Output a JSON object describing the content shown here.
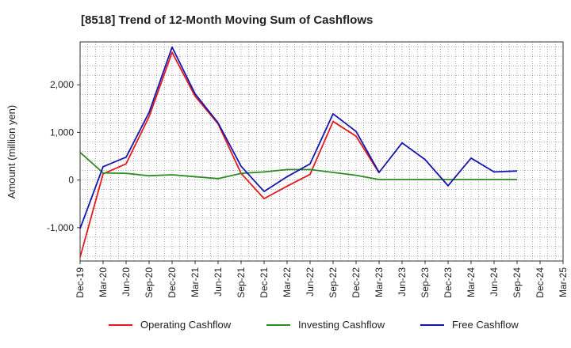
{
  "chart_data": {
    "type": "line",
    "title": "[8518]  Trend of 12-Month Moving Sum of Cashflows",
    "xlabel": "",
    "ylabel": "Amount (million yen)",
    "ylim": [
      -1700,
      2900
    ],
    "yticks": [
      -1000,
      0,
      1000,
      2000
    ],
    "ytick_labels": [
      "-1,000",
      "0",
      "1,000",
      "2,000"
    ],
    "grid": true,
    "legend_position": "bottom",
    "x": [
      "Dec-19",
      "Mar-20",
      "Jun-20",
      "Sep-20",
      "Dec-20",
      "Mar-21",
      "Jun-21",
      "Sep-21",
      "Dec-21",
      "Mar-22",
      "Jun-22",
      "Sep-22",
      "Dec-22",
      "Mar-23",
      "Jun-23",
      "Sep-23",
      "Dec-23",
      "Mar-24",
      "Jun-24",
      "Sep-24",
      "Dec-24",
      "Mar-25"
    ],
    "series": [
      {
        "name": "Operating Cashflow",
        "color": "#e31a1c",
        "values": [
          -1620,
          130,
          340,
          1330,
          2680,
          1760,
          1180,
          140,
          -390,
          -130,
          120,
          1230,
          920,
          150,
          null,
          null,
          null,
          null,
          null,
          null,
          null,
          null
        ]
      },
      {
        "name": "Investing Cashflow",
        "color": "#2e8b22",
        "values": [
          580,
          150,
          140,
          90,
          110,
          70,
          30,
          140,
          170,
          220,
          220,
          160,
          100,
          10,
          10,
          10,
          10,
          10,
          10,
          10,
          null,
          null
        ]
      },
      {
        "name": "Free Cashflow",
        "color": "#1515b0",
        "values": [
          -1020,
          280,
          480,
          1420,
          2790,
          1810,
          1200,
          290,
          -240,
          70,
          340,
          1390,
          1020,
          160,
          780,
          430,
          -120,
          460,
          170,
          190,
          null,
          null
        ]
      }
    ]
  }
}
